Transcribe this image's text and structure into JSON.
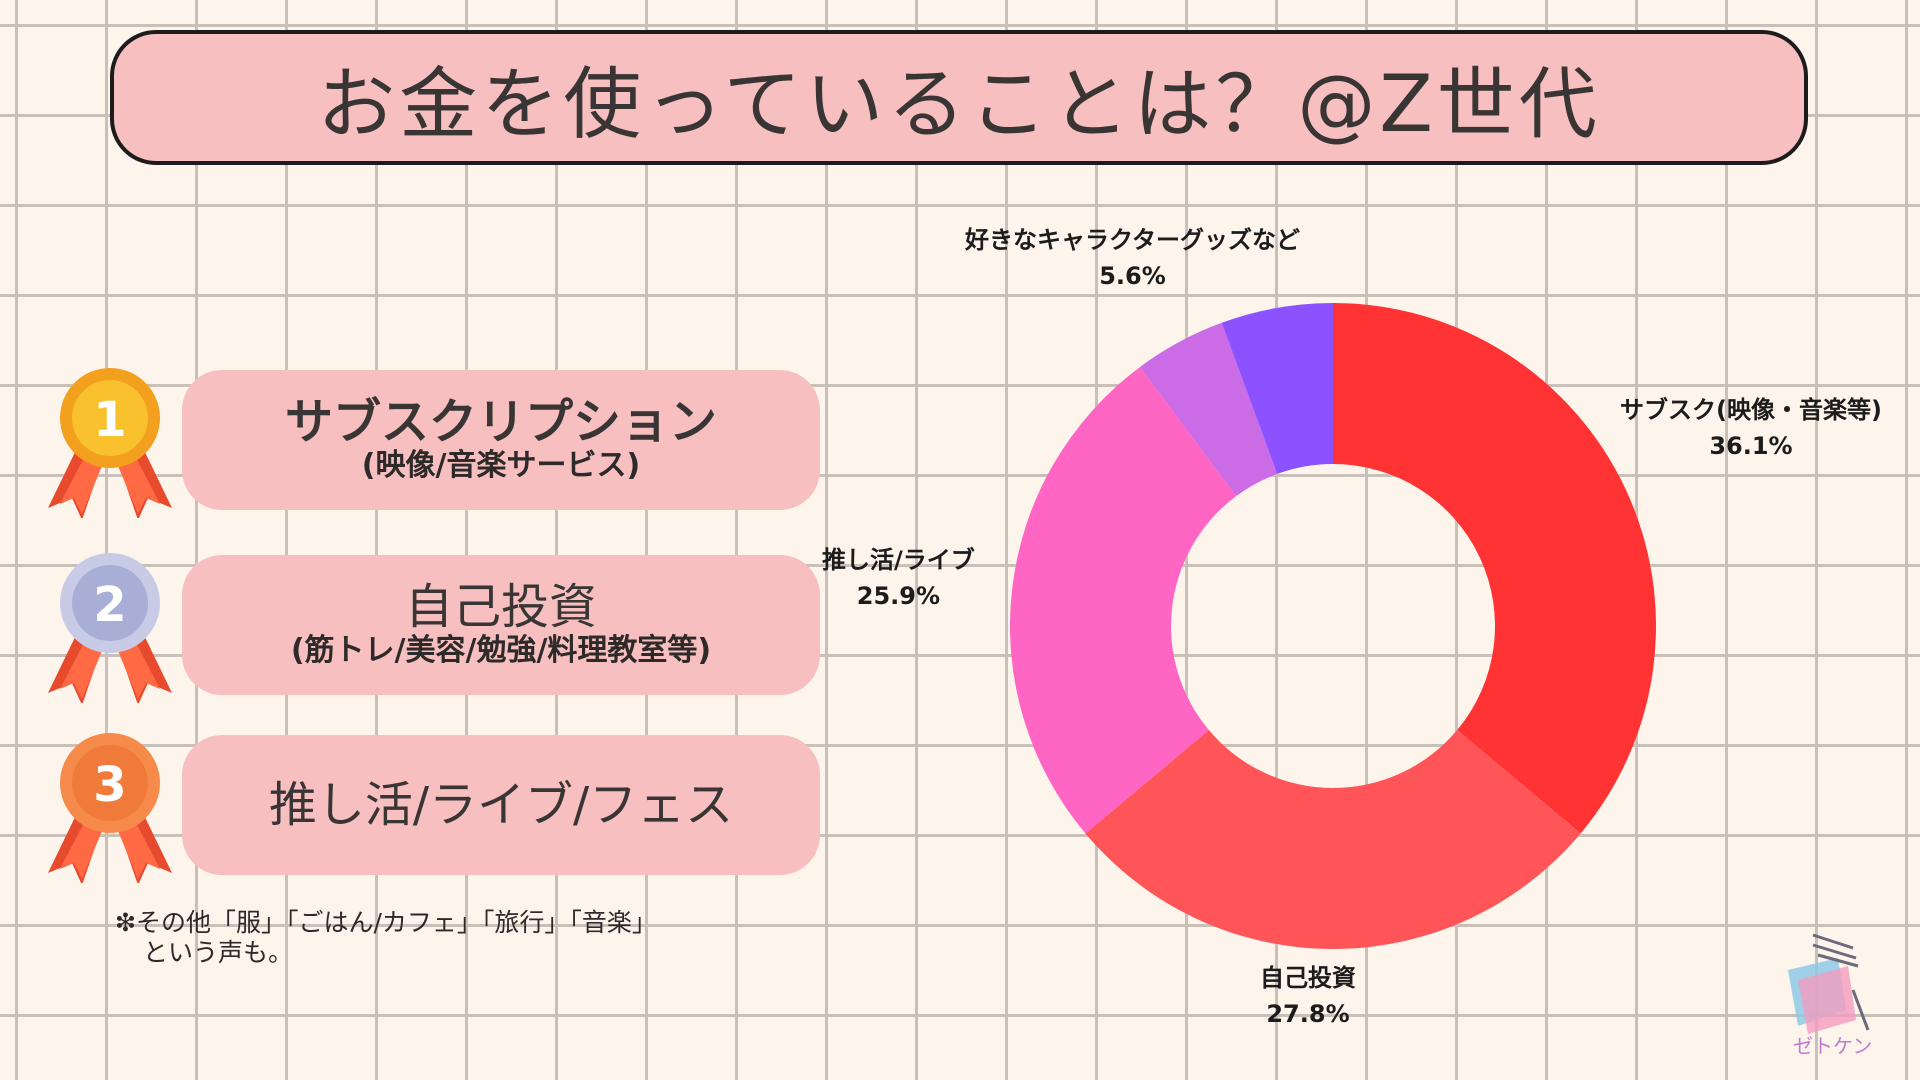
{
  "title": "お金を使っていることは？@Z世代",
  "ranking": [
    {
      "rank": "1",
      "main": "サブスクリプション",
      "sub": "(映像/音楽サービス)",
      "medal_color": "#f5a912"
    },
    {
      "rank": "2",
      "main": "自己投資",
      "sub": "(筋トレ/美容/勉強/料理教室等)",
      "medal_color": "#a9aed6"
    },
    {
      "rank": "3",
      "main": "推し活/ライブ/フェス",
      "sub": "",
      "medal_color": "#f07a3a"
    }
  ],
  "note": {
    "line1": "❇その他「服」「ごはん/カフェ」「旅行」「音楽」",
    "line2": "という声も。"
  },
  "logo_text": "ゼトケン",
  "chart_data": {
    "type": "pie",
    "donut": true,
    "title": "",
    "categories": [
      "サブスク(映像・音楽等)",
      "自己投資",
      "推し活/ライブ",
      "",
      "好きなキャラクターグッズなど"
    ],
    "values": [
      36.1,
      27.8,
      25.9,
      4.6,
      5.6
    ],
    "value_labels": [
      "36.1%",
      "27.8%",
      "25.9%",
      "",
      "5.6%"
    ],
    "colors": [
      "#ff3334",
      "#ff5558",
      "#ff66c3",
      "#cb6ce6",
      "#8c52ff"
    ]
  }
}
